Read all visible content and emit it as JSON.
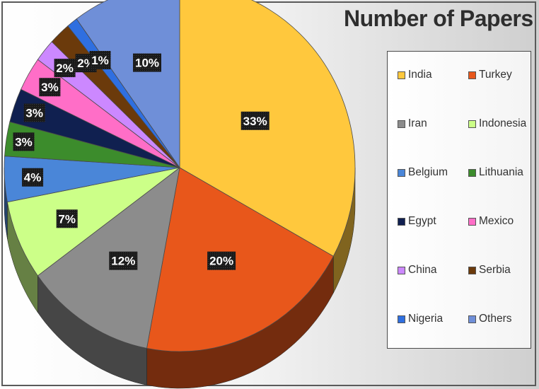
{
  "chart_data": {
    "type": "pie",
    "title": "Number of Papers",
    "categories": [
      "India",
      "Turkey",
      "Iran",
      "Indonesia",
      "Belgium",
      "Lithuania",
      "Egypt",
      "Mexico",
      "China",
      "Serbia",
      "Nigeria",
      "Others"
    ],
    "values": [
      33,
      20,
      12,
      7,
      4,
      3,
      3,
      3,
      2,
      2,
      1,
      10
    ],
    "data_labels": [
      "33%",
      "20%",
      "12%",
      "7%",
      "4%",
      "3%",
      "3%",
      "3%",
      "2%",
      "2%",
      "1%",
      "10%"
    ],
    "colors": [
      "#FFC83D",
      "#E8571B",
      "#8C8C8C",
      "#CCFF88",
      "#4A86D8",
      "#3C8C2C",
      "#102050",
      "#FF6EC7",
      "#CC88FF",
      "#6B3A0B",
      "#2F6FE0",
      "#6F8FD8"
    ],
    "legend_position": "right",
    "style": "3d-pie"
  }
}
